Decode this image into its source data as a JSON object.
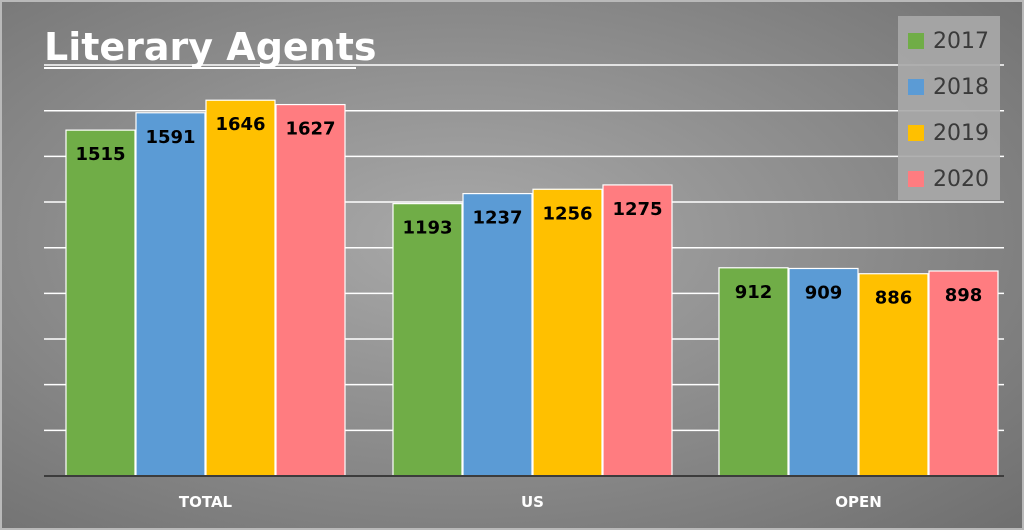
{
  "chart_data": {
    "type": "bar",
    "title": "Literary Agents",
    "categories": [
      "TOTAL",
      "US",
      "OPEN"
    ],
    "series": [
      {
        "name": "2017",
        "color": "#70ad47",
        "values": [
          1515,
          1193,
          912
        ]
      },
      {
        "name": "2018",
        "color": "#5b9bd5",
        "values": [
          1591,
          1237,
          909
        ]
      },
      {
        "name": "2019",
        "color": "#ffc000",
        "values": [
          1646,
          1256,
          886
        ]
      },
      {
        "name": "2020",
        "color": "#ff7c80",
        "values": [
          1627,
          1275,
          898
        ]
      }
    ],
    "ylim": [
      0,
      1800
    ],
    "grid": true,
    "legend_position": "top-right",
    "xlabel": "",
    "ylabel": ""
  }
}
